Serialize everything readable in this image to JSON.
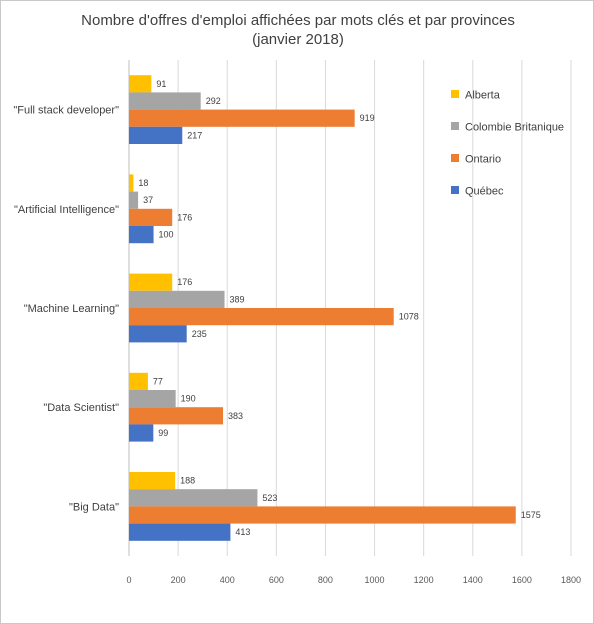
{
  "chart_data": {
    "type": "bar",
    "orientation": "horizontal",
    "title_line1": "Nombre d'offres d'emploi affichées par mots clés et par provinces",
    "title_line2": "(janvier 2018)",
    "categories": [
      "\"Full stack developer\"",
      "\"Artificial Intelligence\"",
      "\"Machine Learning\"",
      "\"Data Scientist\"",
      "\"Big Data\""
    ],
    "series": [
      {
        "name": "Alberta",
        "color": "#FFC000",
        "values": [
          91,
          18,
          176,
          77,
          188
        ]
      },
      {
        "name": "Colombie Britanique",
        "color": "#A5A5A5",
        "values": [
          292,
          37,
          389,
          190,
          523
        ]
      },
      {
        "name": "Ontario",
        "color": "#ED7D31",
        "values": [
          919,
          176,
          1078,
          383,
          1575
        ]
      },
      {
        "name": "Québec",
        "color": "#4472C4",
        "values": [
          217,
          100,
          235,
          99,
          413
        ]
      }
    ],
    "xlim": [
      0,
      1800
    ],
    "xticks": [
      0,
      200,
      400,
      600,
      800,
      1000,
      1200,
      1400,
      1600,
      1800
    ],
    "grid": true,
    "legend_position": "right"
  }
}
